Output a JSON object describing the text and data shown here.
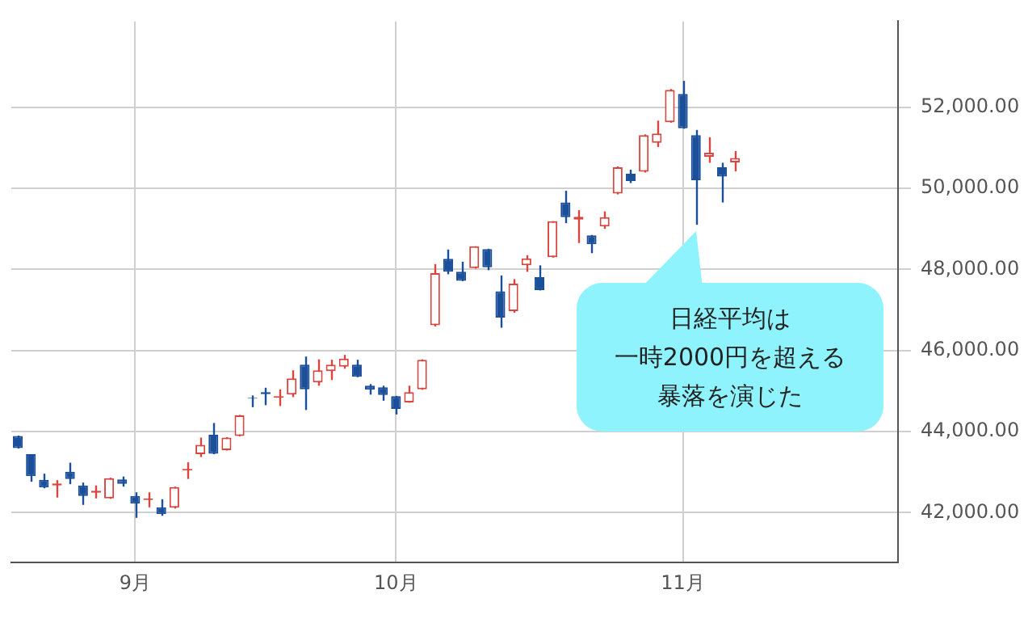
{
  "chart_data": {
    "type": "candlestick",
    "categories": [
      null,
      null,
      null,
      null,
      null,
      null,
      null,
      null,
      null,
      "9月",
      null,
      null,
      null,
      null,
      null,
      null,
      null,
      null,
      null,
      null,
      null,
      null,
      null,
      null,
      null,
      null,
      null,
      null,
      null,
      "10月",
      null,
      null,
      null,
      null,
      null,
      null,
      null,
      null,
      null,
      null,
      null,
      null,
      null,
      null,
      null,
      null,
      null,
      null,
      null,
      null,
      null,
      "11月",
      null,
      null,
      null,
      null,
      null,
      null,
      null,
      null,
      null,
      null,
      null,
      null,
      null,
      null,
      null,
      null
    ],
    "ohlc": [
      [
        43890,
        43900,
        43580,
        43590
      ],
      [
        43440,
        43440,
        42760,
        42900
      ],
      [
        42810,
        42960,
        42600,
        42620
      ],
      [
        42670,
        42800,
        42370,
        42720
      ],
      [
        43010,
        43230,
        42700,
        42830
      ],
      [
        42670,
        42740,
        42190,
        42410
      ],
      [
        42490,
        42670,
        42350,
        42540
      ],
      [
        42350,
        42860,
        42340,
        42850
      ],
      [
        42820,
        42890,
        42640,
        42710
      ],
      [
        42410,
        42500,
        41870,
        42220
      ],
      [
        42310,
        42500,
        42130,
        42350
      ],
      [
        42130,
        42330,
        41920,
        41960
      ],
      [
        42120,
        42640,
        42100,
        42630
      ],
      [
        43040,
        43240,
        42830,
        43080
      ],
      [
        43440,
        43850,
        43370,
        43670
      ],
      [
        43920,
        44210,
        43440,
        43450
      ],
      [
        43540,
        43860,
        43530,
        43850
      ],
      [
        43890,
        44410,
        43880,
        44400
      ],
      [
        44830,
        44890,
        44600,
        44810
      ],
      [
        44970,
        45080,
        44650,
        44920
      ],
      [
        44830,
        45040,
        44630,
        44870
      ],
      [
        44910,
        45510,
        44850,
        45310
      ],
      [
        45650,
        45850,
        44530,
        45040
      ],
      [
        45210,
        45780,
        45130,
        45510
      ],
      [
        45490,
        45770,
        45270,
        45650
      ],
      [
        45600,
        45890,
        45550,
        45800
      ],
      [
        45650,
        45770,
        45340,
        45350
      ],
      [
        45130,
        45170,
        44910,
        45030
      ],
      [
        45090,
        45130,
        44760,
        44900
      ],
      [
        44870,
        44880,
        44420,
        44560
      ],
      [
        44720,
        45130,
        44710,
        44970
      ],
      [
        45040,
        45780,
        45030,
        45770
      ],
      [
        46620,
        48130,
        46590,
        47910
      ],
      [
        48260,
        48490,
        47880,
        47940
      ],
      [
        47940,
        48190,
        47710,
        47720
      ],
      [
        48030,
        48570,
        48020,
        48570
      ],
      [
        48500,
        48510,
        47980,
        48050
      ],
      [
        47460,
        47850,
        46560,
        46810
      ],
      [
        46970,
        47760,
        46930,
        47650
      ],
      [
        48100,
        48350,
        47940,
        48270
      ],
      [
        47810,
        48100,
        47480,
        47490
      ],
      [
        48300,
        49190,
        48290,
        49190
      ],
      [
        49650,
        49940,
        49140,
        49290
      ],
      [
        49230,
        49460,
        48650,
        49300
      ],
      [
        48840,
        48850,
        48400,
        48620
      ],
      [
        49060,
        49430,
        49000,
        49290
      ],
      [
        49870,
        50540,
        49850,
        50520
      ],
      [
        50360,
        50460,
        50130,
        50180
      ],
      [
        50410,
        51330,
        50390,
        51310
      ],
      [
        51120,
        51670,
        51020,
        51350
      ],
      [
        51630,
        52450,
        51620,
        52430
      ],
      [
        52330,
        52650,
        51470,
        51480
      ],
      [
        51310,
        51440,
        49100,
        50200
      ],
      [
        50780,
        51260,
        50630,
        50880
      ],
      [
        50520,
        50630,
        49650,
        50290
      ],
      [
        50640,
        50920,
        50420,
        50750
      ],
      null,
      null,
      null,
      null,
      null,
      null,
      null,
      null,
      null,
      null,
      null,
      null
    ],
    "ylim": [
      40770,
      54120
    ],
    "yticks": [
      {
        "value": 42000,
        "label": "42,000.00"
      },
      {
        "value": 44000,
        "label": "44,000.00"
      },
      {
        "value": 46000,
        "label": "46,000.00"
      },
      {
        "value": 48000,
        "label": "48,000.00"
      },
      {
        "value": 50000,
        "label": "50,000.00"
      },
      {
        "value": 52000,
        "label": "52,000.00"
      }
    ],
    "grid": true,
    "annotations": [
      "日経平均は",
      "一時2000円を超える",
      "暴落を演じた"
    ]
  }
}
